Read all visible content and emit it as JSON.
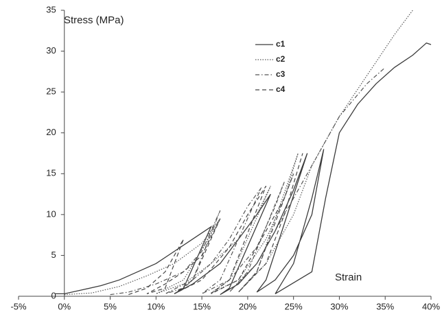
{
  "chart_data": {
    "type": "line",
    "ylabel": "Stress (MPa)",
    "xlabel": "Strain",
    "xlim": [
      -5,
      40
    ],
    "ylim": [
      0,
      35
    ],
    "xticks": [
      {
        "value": -5,
        "label": "-5%"
      },
      {
        "value": 0,
        "label": "0%"
      },
      {
        "value": 5,
        "label": "5%"
      },
      {
        "value": 10,
        "label": "10%"
      },
      {
        "value": 15,
        "label": "15%"
      },
      {
        "value": 20,
        "label": "20%"
      },
      {
        "value": 25,
        "label": "25%"
      },
      {
        "value": 30,
        "label": "30%"
      },
      {
        "value": 35,
        "label": "35%"
      },
      {
        "value": 40,
        "label": "40%"
      }
    ],
    "yticks": [
      0,
      5,
      10,
      15,
      20,
      25,
      30,
      35
    ],
    "grid": false,
    "series": [
      {
        "name": "c1",
        "color": "#3a3a3a",
        "style": "solid",
        "x": [
          -1,
          0,
          2,
          4,
          6,
          8,
          10,
          12,
          14,
          16,
          13,
          12,
          14,
          17,
          19,
          21,
          22.5,
          18,
          17,
          19,
          21,
          23,
          25,
          26.5,
          22,
          21,
          23,
          25,
          27,
          28.3,
          27,
          25,
          23,
          27,
          28.5,
          30,
          32,
          34,
          36,
          38,
          39.5,
          40
        ],
        "values": [
          0.3,
          0.3,
          0.8,
          1.3,
          2,
          3,
          4,
          5.5,
          7,
          8.5,
          1,
          0.3,
          1.5,
          4,
          7,
          10,
          12.5,
          1,
          0.2,
          1.5,
          4,
          8,
          13,
          17.5,
          2,
          0.5,
          2,
          5,
          10,
          18,
          12,
          4,
          0.3,
          3,
          12,
          20,
          23.5,
          26,
          28,
          29.5,
          31,
          30.8
        ]
      },
      {
        "name": "c2",
        "color": "#555555",
        "style": "dotted",
        "x": [
          0,
          3,
          6,
          9,
          12,
          15,
          17,
          13,
          10,
          13,
          16,
          19,
          21,
          22.5,
          18,
          16,
          19,
          22,
          24,
          25.5,
          21,
          19,
          22,
          25,
          27,
          30,
          33,
          36,
          38
        ],
        "values": [
          0.2,
          0.4,
          1.2,
          2.5,
          4,
          6.5,
          9.5,
          2,
          0.3,
          1.5,
          4,
          7,
          10,
          13.5,
          2,
          0.4,
          2,
          7,
          12,
          17.5,
          3,
          0.5,
          4,
          10,
          16,
          22,
          27,
          32,
          35
        ]
      },
      {
        "name": "c3",
        "color": "#555555",
        "style": "dashdot",
        "x": [
          5,
          7,
          10,
          13,
          15,
          17,
          14,
          11,
          13,
          16,
          18,
          20,
          21.5,
          17,
          15,
          18,
          21,
          23,
          24,
          20,
          18,
          21,
          24,
          27,
          30,
          33,
          35
        ],
        "values": [
          0.2,
          0.5,
          1.5,
          3,
          5.5,
          10.5,
          2,
          0.3,
          1,
          4,
          7,
          11,
          13.3,
          2,
          0.3,
          2,
          6,
          11,
          14,
          3,
          0.5,
          4,
          10,
          16,
          22,
          26,
          28
        ]
      },
      {
        "name": "c4",
        "color": "#444444",
        "style": "dashed",
        "x": [
          7,
          9,
          11,
          13,
          11,
          9,
          11,
          13,
          15,
          17,
          14,
          12,
          15,
          18,
          20,
          22,
          18,
          16,
          19,
          22,
          24,
          25,
          21,
          19,
          22,
          24,
          26
        ],
        "values": [
          0.2,
          1,
          3,
          7,
          1,
          0.3,
          1.5,
          3,
          5,
          9.5,
          2,
          0.3,
          2,
          6,
          10,
          13.5,
          2,
          0.3,
          2,
          8,
          12,
          15,
          3,
          0.5,
          4,
          10,
          17.5
        ]
      }
    ]
  }
}
